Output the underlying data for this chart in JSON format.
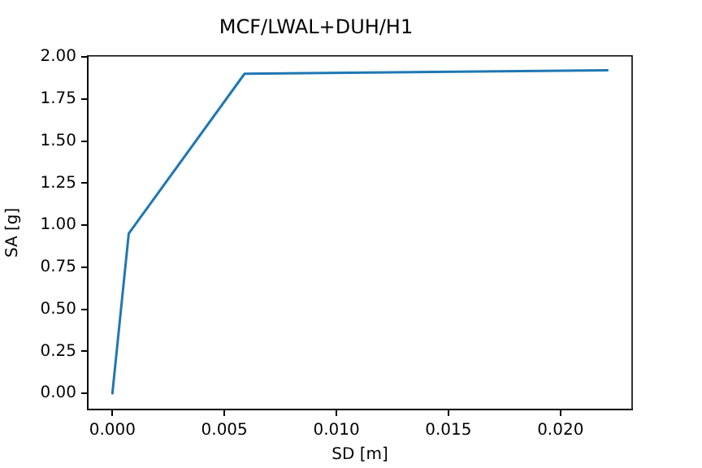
{
  "chart_data": {
    "type": "line",
    "title": "MCF/LWAL+DUH/H1",
    "xlabel": "SD [m]",
    "ylabel": "SA [g]",
    "x": [
      0,
      0.00073,
      0.0059,
      0.0221
    ],
    "series": [
      {
        "color": "#1f77b4",
        "values": [
          0,
          0.95,
          1.9,
          1.92
        ]
      }
    ],
    "xlim": [
      -0.0011,
      0.0232
    ],
    "xticks": [
      {
        "value": 0,
        "label": "0.000"
      },
      {
        "value": 0.005,
        "label": "0.005"
      },
      {
        "value": 0.01,
        "label": "0.010"
      },
      {
        "value": 0.015,
        "label": "0.015"
      },
      {
        "value": 0.02,
        "label": "0.020"
      }
    ],
    "ylim": [
      -0.096,
      2.006
    ],
    "yticks": [
      {
        "value": 0,
        "label": "0.00"
      },
      {
        "value": 0.25,
        "label": "0.25"
      },
      {
        "value": 0.5,
        "label": "0.50"
      },
      {
        "value": 0.75,
        "label": "0.75"
      },
      {
        "value": 1,
        "label": "1.00"
      },
      {
        "value": 1.25,
        "label": "1.25"
      },
      {
        "value": 1.5,
        "label": "1.50"
      },
      {
        "value": 1.75,
        "label": "1.75"
      },
      {
        "value": 2,
        "label": "2.00"
      }
    ],
    "grid": false,
    "legend": false,
    "marker": "none",
    "line_style": "solid"
  }
}
